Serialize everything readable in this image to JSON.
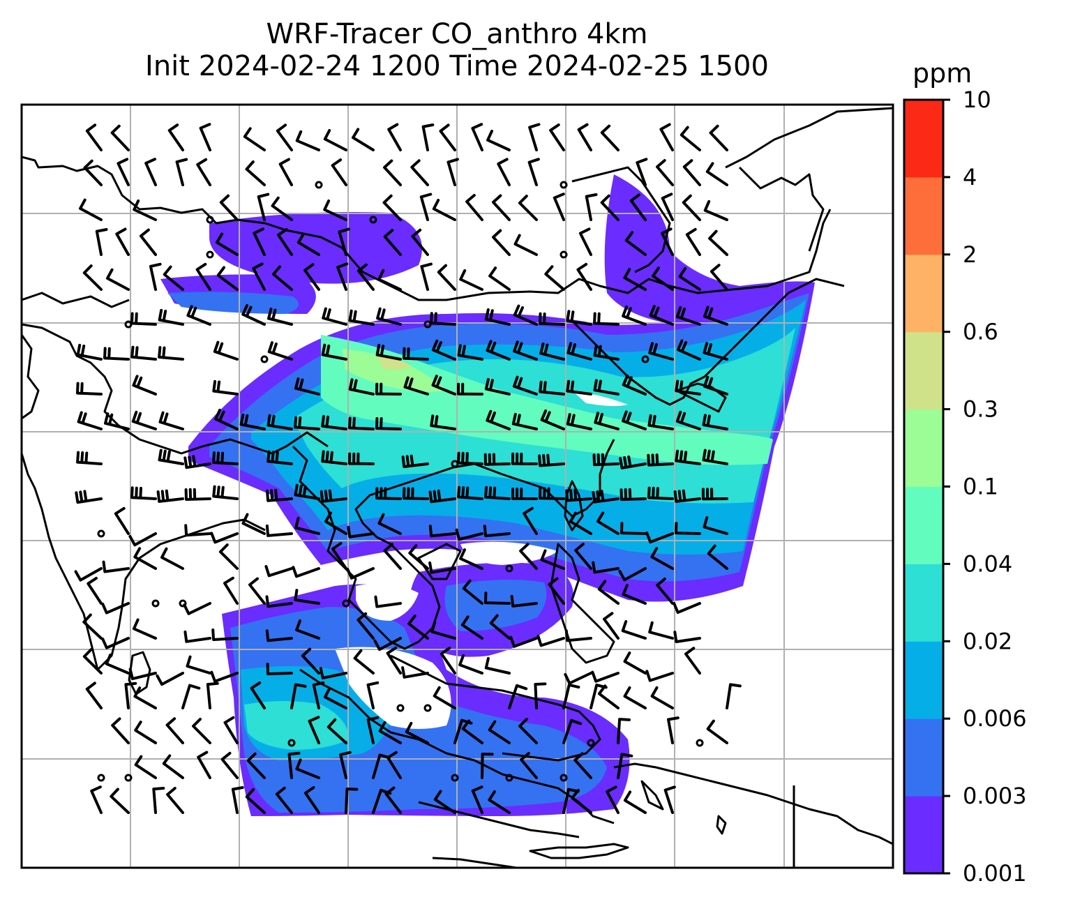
{
  "title": {
    "line1": "WRF-Tracer CO_anthro 4km",
    "line2": "Init 2024-02-24 1200 Time 2024-02-25 1500"
  },
  "colorbar": {
    "unit_label": "ppm",
    "levels": [
      "0.001",
      "0.003",
      "0.006",
      "0.02",
      "0.04",
      "0.1",
      "0.3",
      "0.6",
      "2",
      "4",
      "10"
    ],
    "colors": [
      "#6a2cff",
      "#3472f2",
      "#06aee8",
      "#2ddfd4",
      "#62fcbf",
      "#9cfc96",
      "#cfe28a",
      "#fdb265",
      "#fd6e3b",
      "#fb2916"
    ]
  },
  "map": {
    "gridlines": true,
    "fields": "CO tracer concentration with wind barbs and coastlines"
  }
}
